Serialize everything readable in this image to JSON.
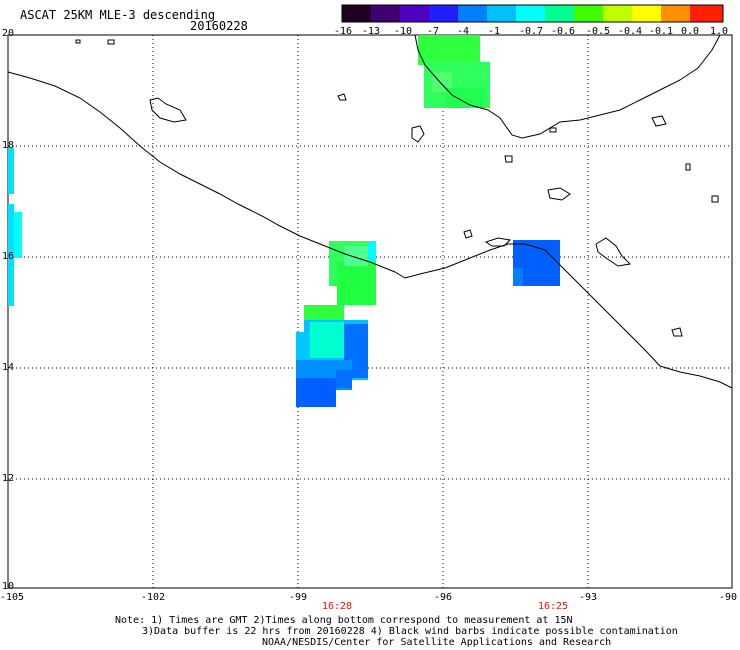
{
  "header": {
    "title": "ASCAT 25KM MLE-3 descending",
    "date": "20160228"
  },
  "colorbar": {
    "labels": [
      "-16",
      "-13",
      "-10",
      "-7",
      "-4",
      "-1",
      "-0.7",
      "-0.6",
      "-0.5",
      "-0.4",
      "-0.1",
      "0.0",
      "1.0"
    ],
    "colors": [
      "#200020",
      "#400070",
      "#5000c0",
      "#2020ff",
      "#0080ff",
      "#00c0ff",
      "#00ffff",
      "#00ff90",
      "#40ff00",
      "#c0ff00",
      "#ffff00",
      "#ff9000",
      "#ff2000"
    ]
  },
  "map": {
    "lat_labels": [
      "20",
      "18",
      "16",
      "14",
      "12",
      "10"
    ],
    "lon_labels": [
      "-105",
      "-102",
      "-99",
      "-96",
      "-93",
      "-90"
    ],
    "lat_range": [
      10,
      20
    ],
    "lon_range": [
      -105,
      -90
    ],
    "grid": "dotted",
    "coastline_color": "#000000"
  },
  "pass_times": [
    "16:28",
    "16:25"
  ],
  "notes": [
    "Note: 1) Times are GMT 2)Times along bottom correspond to measurement at 15N",
    "3)Data buffer is 22 hrs from 20160228 4) Black wind barbs indicate possible contamination",
    "NOAA/NESDIS/Center for Satellite Applications and Research"
  ]
}
